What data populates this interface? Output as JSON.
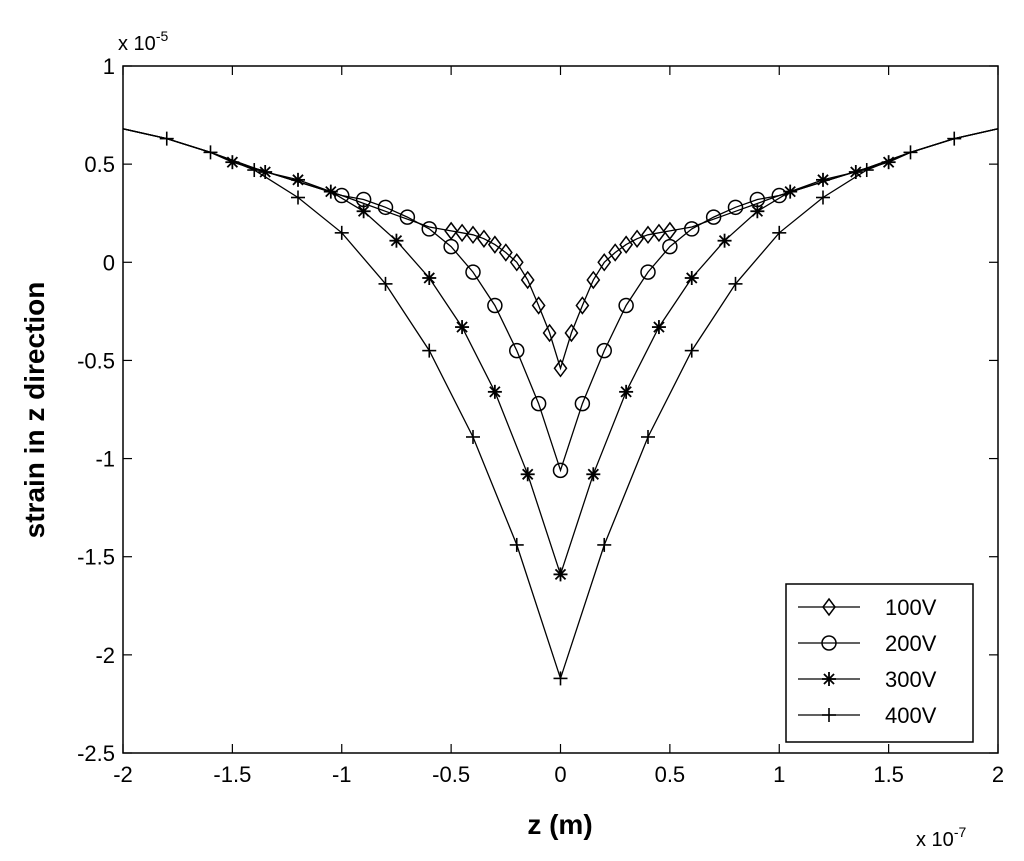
{
  "chart_data": {
    "type": "line",
    "xlabel": "z (m)",
    "ylabel": "strain in z direction",
    "x_scale_label": "x 10",
    "x_scale_exponent": "-7",
    "y_scale_label": "x 10",
    "y_scale_exponent": "-5",
    "xlim": [
      -2,
      2
    ],
    "ylim": [
      -2.5,
      1
    ],
    "x_ticks": [
      "-2",
      "-1.5",
      "-1",
      "-0.5",
      "0",
      "0.5",
      "1",
      "1.5",
      "2"
    ],
    "y_ticks": [
      "-2.5",
      "-2",
      "-1.5",
      "-1",
      "-0.5",
      "0",
      "0.5",
      "1"
    ],
    "grid": false,
    "legend_position": "bottom-right",
    "series": [
      {
        "name": "100V",
        "marker": "diamond",
        "x": [
          -2,
          -1.8,
          -1.6,
          -1.4,
          -1.2,
          -1.0,
          -0.8,
          -0.6,
          -0.5,
          -0.45,
          -0.4,
          -0.35,
          -0.3,
          -0.25,
          -0.2,
          -0.15,
          -0.1,
          -0.05,
          0,
          0.05,
          0.1,
          0.15,
          0.2,
          0.25,
          0.3,
          0.35,
          0.4,
          0.45,
          0.5,
          0.6,
          0.8,
          1.0,
          1.2,
          1.4,
          1.6,
          1.8,
          2
        ],
        "y": [
          0.68,
          0.63,
          0.56,
          0.48,
          0.41,
          0.34,
          0.26,
          0.18,
          0.16,
          0.15,
          0.14,
          0.12,
          0.09,
          0.05,
          0.0,
          -0.09,
          -0.22,
          -0.36,
          -0.54,
          -0.36,
          -0.22,
          -0.09,
          0.0,
          0.05,
          0.09,
          0.12,
          0.14,
          0.15,
          0.16,
          0.18,
          0.26,
          0.34,
          0.41,
          0.48,
          0.56,
          0.63,
          0.68
        ],
        "marker_x": [
          -0.5,
          -0.45,
          -0.4,
          -0.35,
          -0.3,
          -0.25,
          -0.2,
          -0.15,
          -0.1,
          -0.05,
          0,
          0.05,
          0.1,
          0.15,
          0.2,
          0.25,
          0.3,
          0.35,
          0.4,
          0.45,
          0.5
        ]
      },
      {
        "name": "200V",
        "marker": "circle",
        "x": [
          -2,
          -1.8,
          -1.6,
          -1.4,
          -1.2,
          -1.0,
          -0.9,
          -0.8,
          -0.7,
          -0.6,
          -0.5,
          -0.4,
          -0.3,
          -0.2,
          -0.1,
          0,
          0.1,
          0.2,
          0.3,
          0.4,
          0.5,
          0.6,
          0.7,
          0.8,
          0.9,
          1.0,
          1.2,
          1.4,
          1.6,
          1.8,
          2
        ],
        "y": [
          0.68,
          0.63,
          0.56,
          0.48,
          0.41,
          0.34,
          0.32,
          0.28,
          0.23,
          0.17,
          0.08,
          -0.05,
          -0.22,
          -0.45,
          -0.72,
          -1.06,
          -0.72,
          -0.45,
          -0.22,
          -0.05,
          0.08,
          0.17,
          0.23,
          0.28,
          0.32,
          0.34,
          0.41,
          0.48,
          0.56,
          0.63,
          0.68
        ],
        "marker_x": [
          -1.0,
          -0.9,
          -0.8,
          -0.7,
          -0.6,
          -0.5,
          -0.4,
          -0.3,
          -0.2,
          -0.1,
          0,
          0.1,
          0.2,
          0.3,
          0.4,
          0.5,
          0.6,
          0.7,
          0.8,
          0.9,
          1.0
        ]
      },
      {
        "name": "300V",
        "marker": "asterisk",
        "x": [
          -2,
          -1.8,
          -1.6,
          -1.5,
          -1.35,
          -1.2,
          -1.05,
          -0.9,
          -0.75,
          -0.6,
          -0.45,
          -0.3,
          -0.15,
          0,
          0.15,
          0.3,
          0.45,
          0.6,
          0.75,
          0.9,
          1.05,
          1.2,
          1.35,
          1.5,
          1.6,
          1.8,
          2
        ],
        "y": [
          0.68,
          0.63,
          0.56,
          0.51,
          0.46,
          0.42,
          0.36,
          0.26,
          0.11,
          -0.08,
          -0.33,
          -0.66,
          -1.08,
          -1.59,
          -1.08,
          -0.66,
          -0.33,
          -0.08,
          0.11,
          0.26,
          0.36,
          0.42,
          0.46,
          0.51,
          0.56,
          0.63,
          0.68
        ],
        "marker_x": [
          -1.5,
          -1.35,
          -1.2,
          -1.05,
          -0.9,
          -0.75,
          -0.6,
          -0.45,
          -0.3,
          -0.15,
          0,
          0.15,
          0.3,
          0.45,
          0.6,
          0.75,
          0.9,
          1.05,
          1.2,
          1.35,
          1.5
        ]
      },
      {
        "name": "400V",
        "marker": "plus",
        "x": [
          -2,
          -1.8,
          -1.6,
          -1.4,
          -1.2,
          -1.0,
          -0.8,
          -0.6,
          -0.4,
          -0.2,
          0,
          0.2,
          0.4,
          0.6,
          0.8,
          1.0,
          1.2,
          1.4,
          1.6,
          1.8,
          2
        ],
        "y": [
          0.68,
          0.63,
          0.56,
          0.47,
          0.33,
          0.15,
          -0.11,
          -0.45,
          -0.89,
          -1.44,
          -2.12,
          -1.44,
          -0.89,
          -0.45,
          -0.11,
          0.15,
          0.33,
          0.47,
          0.56,
          0.63,
          0.68
        ],
        "marker_x": [
          -1.8,
          -1.6,
          -1.4,
          -1.2,
          -1.0,
          -0.8,
          -0.6,
          -0.4,
          -0.2,
          0,
          0.2,
          0.4,
          0.6,
          0.8,
          1.0,
          1.2,
          1.4,
          1.6,
          1.8
        ]
      }
    ]
  }
}
